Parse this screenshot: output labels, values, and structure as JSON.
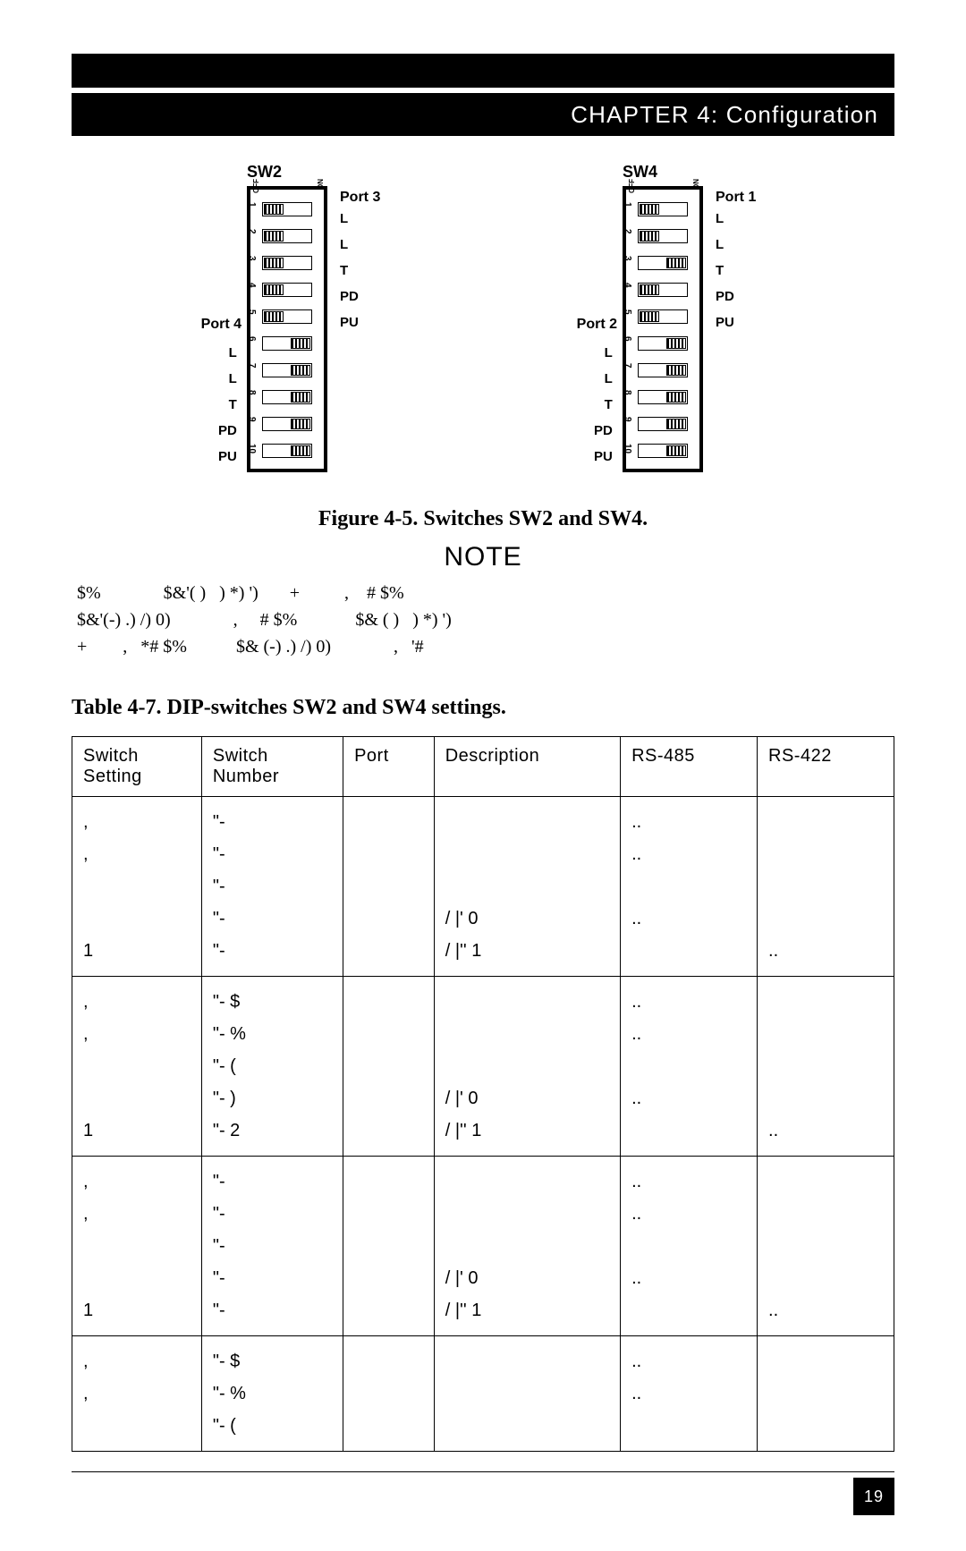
{
  "chapter_header": "CHAPTER 4: Configuration",
  "figure_caption": "Figure 4-5. Switches SW2 and SW4.",
  "note_heading": "NOTE",
  "note_body": "$%              $&'( )   ) *) ')       +          ,    # $%\n$&'(-) .) /) 0)              ,     # $%             $& ( )   ) *) ')\n+        ,   *# $%           $& (-) .) /) 0)              ,   '#",
  "table_caption": "Table 4-7. DIP-switches SW2 and SW4 settings.",
  "page_number": "19",
  "colors": {
    "black": "#000000",
    "white": "#ffffff"
  },
  "dip_switches": [
    {
      "name": "SW2",
      "port_top": "Port 3",
      "port_mid": "Port 4",
      "right_labels": [
        "L",
        "L",
        "T",
        "PD",
        "PU"
      ],
      "left_labels": [
        "L",
        "L",
        "T",
        "PD",
        "PU"
      ],
      "positions": [
        "off",
        "off",
        "off",
        "off",
        "off",
        "on",
        "on",
        "on",
        "on",
        "on"
      ]
    },
    {
      "name": "SW4",
      "port_top": "Port 1",
      "port_mid": "Port 2",
      "right_labels": [
        "L",
        "L",
        "T",
        "PD",
        "PU"
      ],
      "left_labels": [
        "L",
        "L",
        "T",
        "PD",
        "PU"
      ],
      "positions": [
        "off",
        "off",
        "on",
        "off",
        "off",
        "on",
        "on",
        "on",
        "on",
        "on"
      ]
    }
  ],
  "table": {
    "columns": [
      "Switch Setting",
      "Switch Number",
      "Port",
      "Description",
      "RS-485",
      "RS-422"
    ],
    "groups": [
      {
        "rows": [
          {
            "setting": ",",
            "number": "\"-",
            "port": "",
            "desc": "",
            "rs485": "..",
            "rs422": ""
          },
          {
            "setting": ",",
            "number": "\"-",
            "port": "",
            "desc": "",
            "rs485": "..",
            "rs422": ""
          },
          {
            "setting": "",
            "number": "\"-",
            "port": "",
            "desc": "",
            "rs485": "",
            "rs422": ""
          },
          {
            "setting": "",
            "number": "\"-",
            "port": "",
            "desc": "/   |'   0",
            "rs485": "..",
            "rs422": ""
          },
          {
            "setting": "1",
            "number": "\"-",
            "port": "",
            "desc": "/   |'' 1",
            "rs485": "",
            "rs422": ".."
          }
        ]
      },
      {
        "rows": [
          {
            "setting": ",",
            "number": "\"-  $",
            "port": "",
            "desc": "",
            "rs485": "..",
            "rs422": ""
          },
          {
            "setting": ",",
            "number": "\"-  %",
            "port": "",
            "desc": "",
            "rs485": "..",
            "rs422": ""
          },
          {
            "setting": "",
            "number": "\"-  (",
            "port": "",
            "desc": "",
            "rs485": "",
            "rs422": ""
          },
          {
            "setting": "",
            "number": "\"-  )",
            "port": "",
            "desc": "/   |'   0",
            "rs485": "..",
            "rs422": ""
          },
          {
            "setting": "1",
            "number": "\"-  2",
            "port": "",
            "desc": "/   |'' 1",
            "rs485": "",
            "rs422": ".."
          }
        ]
      },
      {
        "rows": [
          {
            "setting": ",",
            "number": "\"-",
            "port": "",
            "desc": "",
            "rs485": "..",
            "rs422": ""
          },
          {
            "setting": ",",
            "number": "\"-",
            "port": "",
            "desc": "",
            "rs485": "..",
            "rs422": ""
          },
          {
            "setting": "",
            "number": "\"-",
            "port": "",
            "desc": "",
            "rs485": "",
            "rs422": ""
          },
          {
            "setting": "",
            "number": "\"-",
            "port": "",
            "desc": "/   |'   0",
            "rs485": "..",
            "rs422": ""
          },
          {
            "setting": "1",
            "number": "\"-",
            "port": "",
            "desc": "/   |'' 1",
            "rs485": "",
            "rs422": ".."
          }
        ]
      },
      {
        "rows": [
          {
            "setting": ",",
            "number": "\"-  $",
            "port": "",
            "desc": "",
            "rs485": "..",
            "rs422": ""
          },
          {
            "setting": ",",
            "number": "\"-  %",
            "port": "",
            "desc": "",
            "rs485": "..",
            "rs422": ""
          },
          {
            "setting": "",
            "number": "\"-  (",
            "port": "",
            "desc": "",
            "rs485": "",
            "rs422": ""
          }
        ]
      }
    ]
  }
}
